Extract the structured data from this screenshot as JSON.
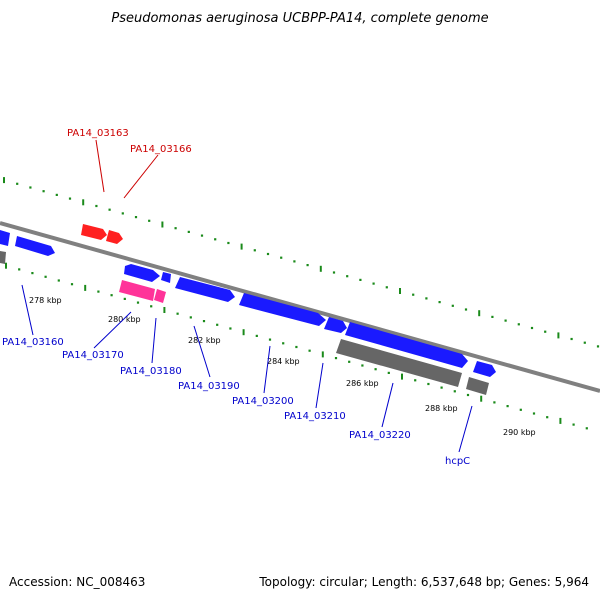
{
  "title": "Pseudomonas aeruginosa UCBPP-PA14, complete genome",
  "footer": {
    "accession": "Accession: NC_008463",
    "topology": "Topology: circular; Length: 6,537,648 bp; Genes: 5,964"
  },
  "colors": {
    "backbone": "#808080",
    "tick_marks": "#1a8a1a",
    "gene_forward": "#1a1aff",
    "gene_highlight": "#ff2020",
    "gene_pink": "#ff3399",
    "gene_gray": "#666666",
    "label_blue": "#0000cc",
    "label_red": "#cc0000"
  },
  "kbp_labels": [
    "278 kbp",
    "280 kbp",
    "282 kbp",
    "284 kbp",
    "286 kbp",
    "288 kbp",
    "290 kbp"
  ],
  "genes": [
    {
      "label": "PA14_03163",
      "color": "label_red"
    },
    {
      "label": "PA14_03166",
      "color": "label_red"
    },
    {
      "label": "PA14_03160",
      "color": "label_blue"
    },
    {
      "label": "PA14_03170",
      "color": "label_blue"
    },
    {
      "label": "PA14_03180",
      "color": "label_blue"
    },
    {
      "label": "PA14_03190",
      "color": "label_blue"
    },
    {
      "label": "PA14_03200",
      "color": "label_blue"
    },
    {
      "label": "PA14_03210",
      "color": "label_blue"
    },
    {
      "label": "PA14_03220",
      "color": "label_blue"
    },
    {
      "label": "hcpC",
      "color": "label_blue"
    }
  ]
}
